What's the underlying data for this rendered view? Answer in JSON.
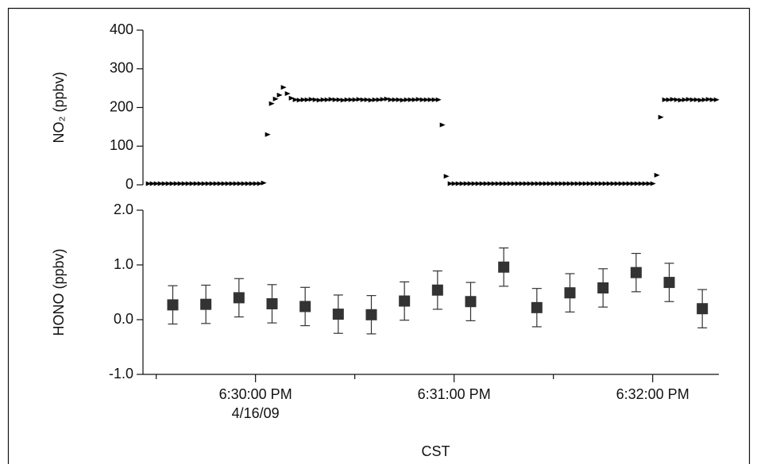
{
  "chart_data": [
    {
      "type": "scatter",
      "ylabel": "NO₂ (ppbv)",
      "color": "#000000",
      "xlim": [
        66566,
        66740
      ],
      "ylim": [
        0,
        400
      ],
      "yticks": [
        0,
        100,
        200,
        300,
        400
      ],
      "x": [
        66567.6,
        66568.8,
        66570,
        66571.2,
        66572.4,
        66573.6,
        66574.8,
        66576,
        66577.2,
        66578.4,
        66579.6,
        66580.8,
        66582,
        66583.2,
        66584.4,
        66585.6,
        66586.8,
        66588,
        66589.2,
        66590.4,
        66591.6,
        66592.8,
        66594,
        66595.2,
        66596.4,
        66597.6,
        66598.8,
        66600,
        66601.2,
        66602.4,
        66603.6,
        66604.8,
        66606,
        66607.2,
        66608.4,
        66609.6,
        66610.8,
        66612,
        66613.2,
        66614.4,
        66615.6,
        66616.8,
        66618,
        66619.2,
        66620.4,
        66621.6,
        66622.8,
        66624,
        66625.2,
        66626.4,
        66627.6,
        66628.8,
        66630,
        66631.2,
        66632.4,
        66633.6,
        66634.8,
        66636,
        66637.2,
        66638.4,
        66639.6,
        66640.8,
        66642,
        66643.2,
        66644.4,
        66645.6,
        66646.8,
        66648,
        66649.2,
        66650.4,
        66651.6,
        66652.8,
        66654,
        66655.2,
        66656.4,
        66657.6,
        66658.8,
        66660,
        66661.2,
        66662.4,
        66663.6,
        66664.8,
        66666,
        66667.2,
        66668.4,
        66669.6,
        66670.8,
        66672,
        66673.2,
        66674.4,
        66675.6,
        66676.8,
        66678,
        66679.2,
        66680.4,
        66681.6,
        66682.8,
        66684,
        66685.2,
        66686.4,
        66687.6,
        66688.8,
        66690,
        66691.2,
        66692.4,
        66693.6,
        66694.8,
        66696,
        66697.2,
        66698.4,
        66699.6,
        66700.8,
        66702,
        66703.2,
        66704.4,
        66705.6,
        66706.8,
        66708,
        66709.2,
        66710.4,
        66711.6,
        66712.8,
        66714,
        66715.2,
        66716.4,
        66717.6,
        66718.8,
        66720,
        66721.2,
        66722.4,
        66723.6,
        66724.8,
        66726,
        66727.2,
        66728.4,
        66729.6,
        66730.8,
        66732,
        66733.2,
        66734.4,
        66735.6,
        66736.8,
        66738,
        66739.2
      ],
      "values": [
        3,
        3,
        3,
        3,
        3,
        3,
        3,
        3,
        3,
        3,
        3,
        3,
        3,
        3,
        3,
        3,
        3,
        3,
        3,
        3,
        3,
        3,
        3,
        3,
        3,
        3,
        3,
        3,
        3,
        5,
        130,
        210,
        222,
        232,
        252,
        236,
        224,
        220,
        219,
        220,
        220,
        221,
        220,
        219,
        220,
        220,
        221,
        220,
        220,
        219,
        220,
        220,
        220,
        221,
        220,
        220,
        219,
        220,
        220,
        221,
        222,
        220,
        220,
        220,
        219,
        220,
        220,
        220,
        221,
        220,
        220,
        220,
        220,
        220,
        155,
        22,
        3,
        3,
        3,
        3,
        3,
        3,
        3,
        3,
        3,
        3,
        3,
        3,
        3,
        3,
        3,
        3,
        3,
        3,
        3,
        3,
        3,
        3,
        3,
        3,
        3,
        3,
        3,
        3,
        3,
        3,
        3,
        3,
        3,
        3,
        3,
        3,
        3,
        3,
        3,
        3,
        3,
        3,
        3,
        3,
        3,
        3,
        3,
        3,
        3,
        3,
        3,
        3,
        25,
        175,
        220,
        220,
        221,
        220,
        219,
        220,
        221,
        220,
        220,
        219,
        220,
        221,
        220,
        220
      ]
    },
    {
      "type": "errorbar",
      "ylabel": "HONO (ppbv)",
      "xlabel": "CST",
      "date_label": "4/16/09",
      "color": "#333333",
      "xlim": [
        66566,
        66740
      ],
      "ylim": [
        -1,
        2
      ],
      "yticks": [
        {
          "value": -1,
          "label": "-1.0"
        },
        {
          "value": 0,
          "label": "0.0"
        },
        {
          "value": 1,
          "label": "1.0"
        },
        {
          "value": 2,
          "label": "2.0"
        }
      ],
      "xticks": [
        {
          "value": 66600,
          "label": "6:30:00 PM"
        },
        {
          "value": 66660,
          "label": "6:31:00 PM"
        },
        {
          "value": 66720,
          "label": "6:32:00 PM"
        }
      ],
      "xminorticks": [
        66570,
        66630,
        66690
      ],
      "x": [
        66575,
        66585,
        66595,
        66605,
        66615,
        66625,
        66635,
        66645,
        66655,
        66665,
        66675,
        66685,
        66695,
        66705,
        66715,
        66725,
        66735
      ],
      "values": [
        0.27,
        0.28,
        0.4,
        0.29,
        0.24,
        0.1,
        0.09,
        0.34,
        0.54,
        0.33,
        0.96,
        0.22,
        0.49,
        0.58,
        0.86,
        0.68,
        0.2
      ],
      "errors": [
        0.35,
        0.35,
        0.35,
        0.35,
        0.35,
        0.35,
        0.35,
        0.35,
        0.35,
        0.35,
        0.35,
        0.35,
        0.35,
        0.35,
        0.35,
        0.35,
        0.35
      ]
    }
  ]
}
